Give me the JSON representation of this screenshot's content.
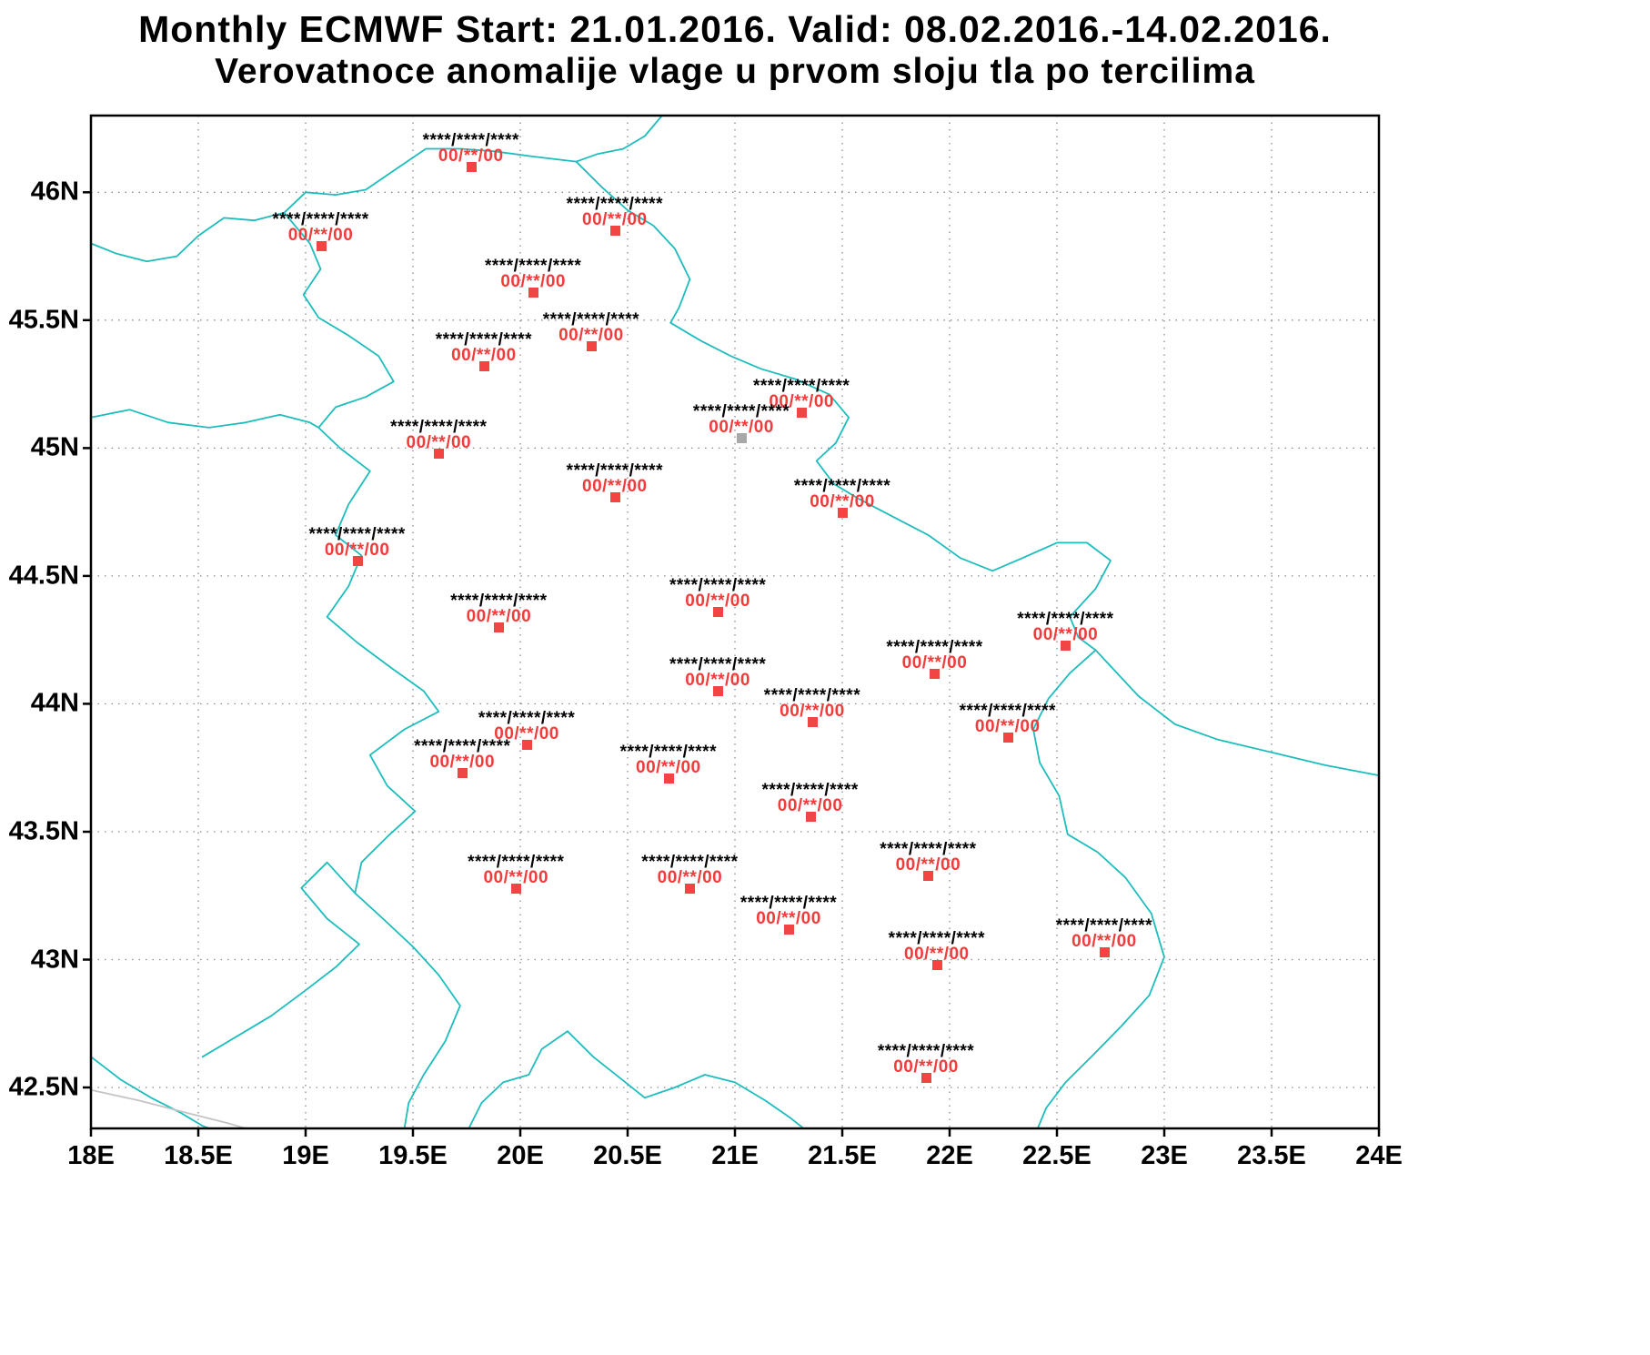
{
  "title": {
    "line1": "Monthly ECMWF Start: 21.01.2016. Valid: 08.02.2016.-14.02.2016.",
    "line2": "Verovatnoce anomalije vlage u prvom sloju tla po tercilima"
  },
  "colors": {
    "border_teal": "#1dbdbd",
    "coast_gray": "#c4c4c4",
    "grid_gray": "#8a8a8a",
    "frame_black": "#000000",
    "station_text_red": "#f23b3b",
    "marker_red": "#f34444",
    "marker_gray": "#a8a8a8"
  },
  "map": {
    "lon_min": 18,
    "lon_max": 24,
    "lat_min": 42.34,
    "lat_max": 46.3,
    "x_ticks": [
      {
        "lon": 18,
        "label": "18E"
      },
      {
        "lon": 18.5,
        "label": "18.5E"
      },
      {
        "lon": 19,
        "label": "19E"
      },
      {
        "lon": 19.5,
        "label": "19.5E"
      },
      {
        "lon": 20,
        "label": "20E"
      },
      {
        "lon": 20.5,
        "label": "20.5E"
      },
      {
        "lon": 21,
        "label": "21E"
      },
      {
        "lon": 21.5,
        "label": "21.5E"
      },
      {
        "lon": 22,
        "label": "22E"
      },
      {
        "lon": 22.5,
        "label": "22.5E"
      },
      {
        "lon": 23,
        "label": "23E"
      },
      {
        "lon": 23.5,
        "label": "23.5E"
      },
      {
        "lon": 24,
        "label": "24E"
      }
    ],
    "y_ticks": [
      {
        "lat": 46,
        "label": "46N"
      },
      {
        "lat": 45.5,
        "label": "45.5N"
      },
      {
        "lat": 45,
        "label": "45N"
      },
      {
        "lat": 44.5,
        "label": "44.5N"
      },
      {
        "lat": 44,
        "label": "44N"
      },
      {
        "lat": 43.5,
        "label": "43.5N"
      },
      {
        "lat": 43,
        "label": "43N"
      },
      {
        "lat": 42.5,
        "label": "42.5N"
      }
    ]
  },
  "stations": [
    {
      "lon": 19.77,
      "lat": 46.1,
      "marker": "red",
      "top": "****/****/****",
      "bottom": "00/**/00"
    },
    {
      "lon": 19.07,
      "lat": 45.79,
      "marker": "red",
      "top": "****/****/****",
      "bottom": "00/**/00"
    },
    {
      "lon": 20.44,
      "lat": 45.85,
      "marker": "red",
      "top": "****/****/****",
      "bottom": "00/**/00"
    },
    {
      "lon": 20.06,
      "lat": 45.61,
      "marker": "red",
      "top": "****/****/****",
      "bottom": "00/**/00"
    },
    {
      "lon": 20.33,
      "lat": 45.4,
      "marker": "red",
      "top": "****/****/****",
      "bottom": "00/**/00"
    },
    {
      "lon": 19.83,
      "lat": 45.32,
      "marker": "red",
      "top": "****/****/****",
      "bottom": "00/**/00"
    },
    {
      "lon": 21.31,
      "lat": 45.14,
      "marker": "red",
      "top": "****/****/****",
      "bottom": "00/**/00"
    },
    {
      "lon": 21.03,
      "lat": 45.04,
      "marker": "gray",
      "top": "****/****/****",
      "bottom": "00/**/00"
    },
    {
      "lon": 19.62,
      "lat": 44.98,
      "marker": "red",
      "top": "****/****/****",
      "bottom": "00/**/00"
    },
    {
      "lon": 20.44,
      "lat": 44.81,
      "marker": "red",
      "top": "****/****/****",
      "bottom": "00/**/00"
    },
    {
      "lon": 21.5,
      "lat": 44.75,
      "marker": "red",
      "top": "****/****/****",
      "bottom": "00/**/00"
    },
    {
      "lon": 19.24,
      "lat": 44.56,
      "marker": "red",
      "top": "****/****/****",
      "bottom": "00/**/00"
    },
    {
      "lon": 20.92,
      "lat": 44.36,
      "marker": "red",
      "top": "****/****/****",
      "bottom": "00/**/00"
    },
    {
      "lon": 19.9,
      "lat": 44.3,
      "marker": "red",
      "top": "****/****/****",
      "bottom": "00/**/00"
    },
    {
      "lon": 22.54,
      "lat": 44.23,
      "marker": "red",
      "top": "****/****/****",
      "bottom": "00/**/00"
    },
    {
      "lon": 21.93,
      "lat": 44.12,
      "marker": "red",
      "top": "****/****/****",
      "bottom": "00/**/00"
    },
    {
      "lon": 20.92,
      "lat": 44.05,
      "marker": "red",
      "top": "****/****/****",
      "bottom": "00/**/00"
    },
    {
      "lon": 21.36,
      "lat": 43.93,
      "marker": "red",
      "top": "****/****/****",
      "bottom": "00/**/00"
    },
    {
      "lon": 22.27,
      "lat": 43.87,
      "marker": "red",
      "top": "****/****/****",
      "bottom": "00/**/00"
    },
    {
      "lon": 20.03,
      "lat": 43.84,
      "marker": "red",
      "top": "****/****/****",
      "bottom": "00/**/00"
    },
    {
      "lon": 19.73,
      "lat": 43.73,
      "marker": "red",
      "top": "****/****/****",
      "bottom": "00/**/00"
    },
    {
      "lon": 20.69,
      "lat": 43.71,
      "marker": "red",
      "top": "****/****/****",
      "bottom": "00/**/00"
    },
    {
      "lon": 21.35,
      "lat": 43.56,
      "marker": "red",
      "top": "****/****/****",
      "bottom": "00/**/00"
    },
    {
      "lon": 21.9,
      "lat": 43.33,
      "marker": "red",
      "top": "****/****/****",
      "bottom": "00/**/00"
    },
    {
      "lon": 19.98,
      "lat": 43.28,
      "marker": "red",
      "top": "****/****/****",
      "bottom": "00/**/00"
    },
    {
      "lon": 20.79,
      "lat": 43.28,
      "marker": "red",
      "top": "****/****/****",
      "bottom": "00/**/00"
    },
    {
      "lon": 21.25,
      "lat": 43.12,
      "marker": "red",
      "top": "****/****/****",
      "bottom": "00/**/00"
    },
    {
      "lon": 21.94,
      "lat": 42.98,
      "marker": "red",
      "top": "****/****/****",
      "bottom": "00/**/00"
    },
    {
      "lon": 22.72,
      "lat": 43.03,
      "marker": "red",
      "top": "****/****/****",
      "bottom": "00/**/00"
    },
    {
      "lon": 21.89,
      "lat": 42.54,
      "marker": "red",
      "top": "****/****/****",
      "bottom": "00/**/00"
    }
  ],
  "borders": [
    {
      "name": "hungary-croatia-serbia-border",
      "color": "teal",
      "points": [
        [
          18.0,
          45.8
        ],
        [
          18.12,
          45.76
        ],
        [
          18.26,
          45.73
        ],
        [
          18.4,
          45.75
        ],
        [
          18.5,
          45.83
        ],
        [
          18.62,
          45.9
        ],
        [
          18.76,
          45.89
        ],
        [
          18.9,
          45.92
        ],
        [
          19.0,
          46.0
        ],
        [
          19.14,
          45.99
        ],
        [
          19.28,
          46.01
        ],
        [
          19.42,
          46.09
        ],
        [
          19.56,
          46.17
        ],
        [
          19.72,
          46.17
        ],
        [
          19.88,
          46.16
        ],
        [
          20.06,
          46.14
        ],
        [
          20.26,
          46.12
        ]
      ]
    },
    {
      "name": "hungary-romania-border",
      "color": "teal",
      "points": [
        [
          20.26,
          46.12
        ],
        [
          20.36,
          46.15
        ],
        [
          20.48,
          46.17
        ],
        [
          20.58,
          46.22
        ],
        [
          20.66,
          46.3
        ]
      ]
    },
    {
      "name": "serbia-romania-border",
      "color": "teal",
      "points": [
        [
          20.26,
          46.12
        ],
        [
          20.38,
          46.02
        ],
        [
          20.5,
          45.93
        ],
        [
          20.62,
          45.87
        ],
        [
          20.72,
          45.78
        ],
        [
          20.79,
          45.66
        ],
        [
          20.74,
          45.55
        ],
        [
          20.7,
          45.49
        ],
        [
          20.84,
          45.42
        ],
        [
          20.98,
          45.36
        ],
        [
          21.12,
          45.31
        ],
        [
          21.28,
          45.27
        ],
        [
          21.44,
          45.21
        ],
        [
          21.53,
          45.12
        ],
        [
          21.47,
          45.02
        ],
        [
          21.38,
          44.95
        ],
        [
          21.46,
          44.86
        ],
        [
          21.58,
          44.8
        ],
        [
          21.74,
          44.73
        ],
        [
          21.9,
          44.66
        ],
        [
          22.05,
          44.57
        ],
        [
          22.2,
          44.52
        ],
        [
          22.34,
          44.57
        ],
        [
          22.5,
          44.63
        ],
        [
          22.64,
          44.63
        ],
        [
          22.75,
          44.56
        ],
        [
          22.68,
          44.45
        ],
        [
          22.56,
          44.34
        ],
        [
          22.6,
          44.26
        ],
        [
          22.68,
          44.21
        ]
      ]
    },
    {
      "name": "serbia-bulgaria-border",
      "color": "teal",
      "points": [
        [
          22.68,
          44.21
        ],
        [
          22.56,
          44.12
        ],
        [
          22.46,
          44.02
        ],
        [
          22.39,
          43.9
        ],
        [
          22.42,
          43.77
        ],
        [
          22.51,
          43.64
        ],
        [
          22.55,
          43.49
        ],
        [
          22.69,
          43.42
        ],
        [
          22.82,
          43.32
        ],
        [
          22.94,
          43.18
        ],
        [
          23.0,
          43.01
        ],
        [
          22.93,
          42.86
        ],
        [
          22.8,
          42.74
        ],
        [
          22.66,
          42.62
        ],
        [
          22.54,
          42.52
        ],
        [
          22.45,
          42.42
        ],
        [
          22.41,
          42.34
        ]
      ]
    },
    {
      "name": "romania-bulgaria-danube-border",
      "color": "teal",
      "points": [
        [
          22.68,
          44.21
        ],
        [
          22.88,
          44.03
        ],
        [
          23.05,
          43.92
        ],
        [
          23.25,
          43.86
        ],
        [
          23.5,
          43.81
        ],
        [
          23.75,
          43.76
        ],
        [
          24.0,
          43.72
        ]
      ]
    },
    {
      "name": "croatia-serbia-drina-border",
      "color": "teal",
      "points": [
        [
          18.9,
          45.92
        ],
        [
          19.02,
          45.8
        ],
        [
          19.07,
          45.7
        ],
        [
          18.99,
          45.6
        ],
        [
          19.06,
          45.51
        ],
        [
          19.2,
          45.44
        ],
        [
          19.34,
          45.36
        ],
        [
          19.41,
          45.26
        ],
        [
          19.28,
          45.2
        ],
        [
          19.14,
          45.16
        ],
        [
          19.06,
          45.08
        ],
        [
          19.16,
          45.0
        ],
        [
          19.3,
          44.91
        ],
        [
          19.2,
          44.78
        ],
        [
          19.14,
          44.66
        ],
        [
          19.26,
          44.58
        ],
        [
          19.2,
          44.46
        ],
        [
          19.1,
          44.34
        ],
        [
          19.24,
          44.24
        ],
        [
          19.4,
          44.14
        ],
        [
          19.55,
          44.05
        ],
        [
          19.62,
          43.97
        ],
        [
          19.46,
          43.9
        ],
        [
          19.3,
          43.8
        ],
        [
          19.38,
          43.68
        ],
        [
          19.51,
          43.58
        ],
        [
          19.38,
          43.48
        ],
        [
          19.26,
          43.38
        ],
        [
          19.23,
          43.26
        ],
        [
          19.36,
          43.16
        ],
        [
          19.5,
          43.05
        ],
        [
          19.62,
          42.94
        ],
        [
          19.72,
          42.82
        ],
        [
          19.65,
          42.68
        ],
        [
          19.55,
          42.55
        ],
        [
          19.48,
          42.44
        ],
        [
          19.46,
          42.34
        ]
      ]
    },
    {
      "name": "croatia-bosnia-sava-border",
      "color": "teal",
      "points": [
        [
          18.0,
          45.12
        ],
        [
          18.18,
          45.15
        ],
        [
          18.36,
          45.1
        ],
        [
          18.55,
          45.08
        ],
        [
          18.72,
          45.1
        ],
        [
          18.88,
          45.13
        ],
        [
          19.02,
          45.1
        ],
        [
          19.06,
          45.08
        ]
      ]
    },
    {
      "name": "montenegro-bosnia-border",
      "color": "teal",
      "points": [
        [
          18.52,
          42.62
        ],
        [
          18.68,
          42.7
        ],
        [
          18.84,
          42.78
        ],
        [
          19.0,
          42.88
        ],
        [
          19.14,
          42.97
        ],
        [
          19.25,
          43.06
        ],
        [
          19.1,
          43.16
        ],
        [
          18.98,
          43.28
        ],
        [
          19.1,
          43.38
        ],
        [
          19.23,
          43.26
        ]
      ]
    },
    {
      "name": "adriatic-coastline",
      "color": "teal",
      "points": [
        [
          18.0,
          42.62
        ],
        [
          18.14,
          42.53
        ],
        [
          18.28,
          42.46
        ],
        [
          18.42,
          42.4
        ],
        [
          18.52,
          42.35
        ],
        [
          18.55,
          42.34
        ]
      ]
    },
    {
      "name": "kosovo-macedonia-albania-border",
      "color": "teal",
      "points": [
        [
          19.76,
          42.34
        ],
        [
          19.82,
          42.44
        ],
        [
          19.92,
          42.52
        ],
        [
          20.04,
          42.55
        ],
        [
          20.1,
          42.65
        ],
        [
          20.22,
          42.72
        ],
        [
          20.34,
          42.62
        ],
        [
          20.46,
          42.54
        ],
        [
          20.58,
          42.46
        ],
        [
          20.72,
          42.5
        ],
        [
          20.86,
          42.55
        ],
        [
          21.0,
          42.52
        ],
        [
          21.14,
          42.45
        ],
        [
          21.26,
          42.38
        ],
        [
          21.32,
          42.34
        ]
      ]
    },
    {
      "name": "coast-gray-line",
      "color": "gray",
      "points": [
        [
          18.0,
          42.49
        ],
        [
          18.22,
          42.45
        ],
        [
          18.45,
          42.4
        ],
        [
          18.64,
          42.36
        ],
        [
          18.72,
          42.34
        ]
      ]
    }
  ]
}
